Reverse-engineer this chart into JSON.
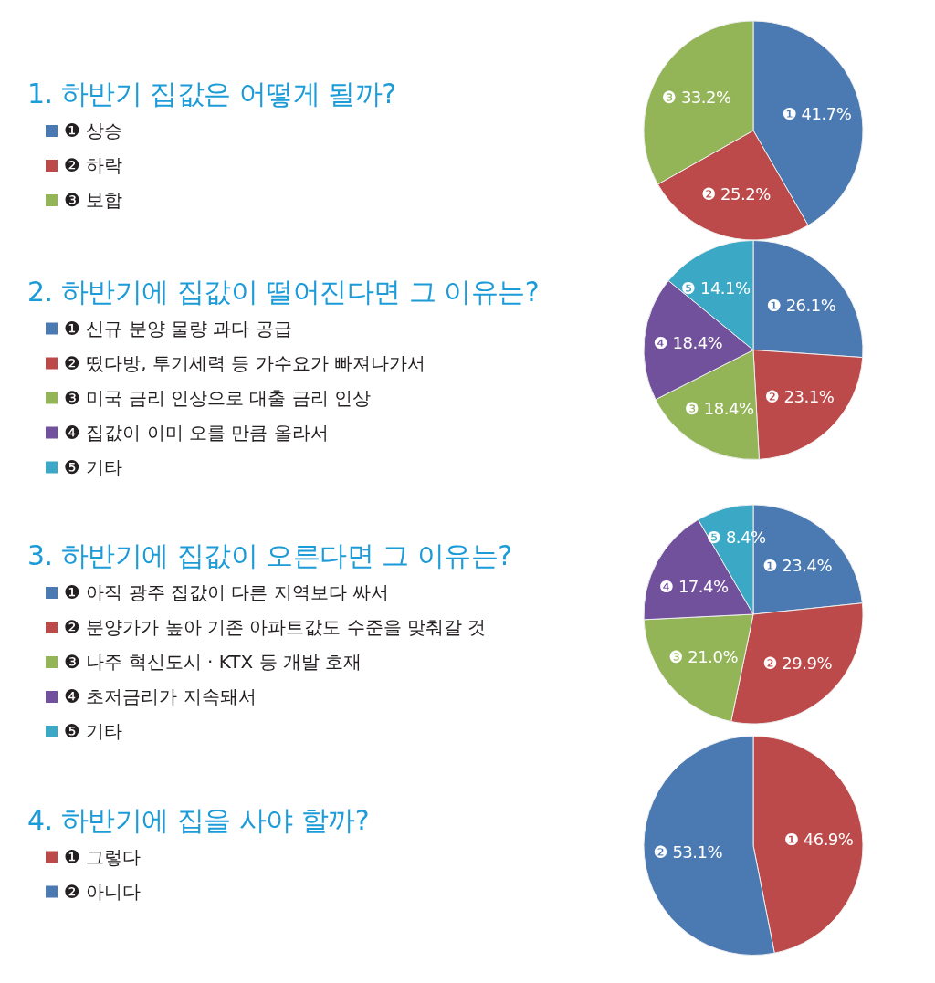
{
  "chart_data": [
    {
      "type": "pie",
      "title": "1. 하반기 집값은 어떻게 될까?",
      "categories": [
        "❶ 상승",
        "❷ 하락",
        "❸ 보합"
      ],
      "values": [
        41.7,
        25.2,
        33.2
      ],
      "colors": [
        "#4b7ab3",
        "#bd4a4a",
        "#93b558"
      ],
      "value_labels": [
        "❶ 41.7%",
        "❷ 25.2%",
        "❸ 33.2%"
      ],
      "legend": "left"
    },
    {
      "type": "pie",
      "title": "2. 하반기에 집값이 떨어진다면 그 이유는?",
      "categories": [
        "❶ 신규 분양 물량 과다 공급",
        "❷ 떴다방, 투기세력 등 가수요가 빠져나가서",
        "❸ 미국 금리 인상으로 대출 금리 인상",
        "❹ 집값이 이미 오를 만큼 올라서",
        "❺ 기타"
      ],
      "values": [
        26.1,
        23.1,
        18.4,
        18.4,
        14.1
      ],
      "colors": [
        "#4b7ab3",
        "#bd4a4a",
        "#93b558",
        "#71519b",
        "#3ba8c6"
      ],
      "value_labels": [
        "❶ 26.1%",
        "❷ 23.1%",
        "❸ 18.4%",
        "❹ 18.4%",
        "❺ 14.1%"
      ],
      "legend": "left"
    },
    {
      "type": "pie",
      "title": "3. 하반기에 집값이 오른다면 그 이유는?",
      "categories": [
        "❶ 아직 광주 집값이 다른 지역보다 싸서",
        "❷ 분양가가 높아 기존 아파트값도 수준을 맞춰갈 것",
        "❸ 나주 혁신도시 · KTX 등 개발 호재",
        "❹ 초저금리가 지속돼서",
        "❺ 기타"
      ],
      "values": [
        23.4,
        29.9,
        21.0,
        17.4,
        8.4
      ],
      "colors": [
        "#4b7ab3",
        "#bd4a4a",
        "#93b558",
        "#71519b",
        "#3ba8c6"
      ],
      "value_labels": [
        "❶ 23.4%",
        "❷ 29.9%",
        "❸ 21.0%",
        "❹ 17.4%",
        "❺ 8.4%"
      ],
      "legend": "left"
    },
    {
      "type": "pie",
      "title": "4. 하반기에 집을 사야 할까?",
      "categories": [
        "❶ 그렇다",
        "❷ 아니다"
      ],
      "values": [
        46.9,
        53.1
      ],
      "colors": [
        "#bd4a4a",
        "#4b7ab3"
      ],
      "value_labels": [
        "❶ 46.9%",
        "❷ 53.1%"
      ],
      "legend": "left"
    }
  ]
}
